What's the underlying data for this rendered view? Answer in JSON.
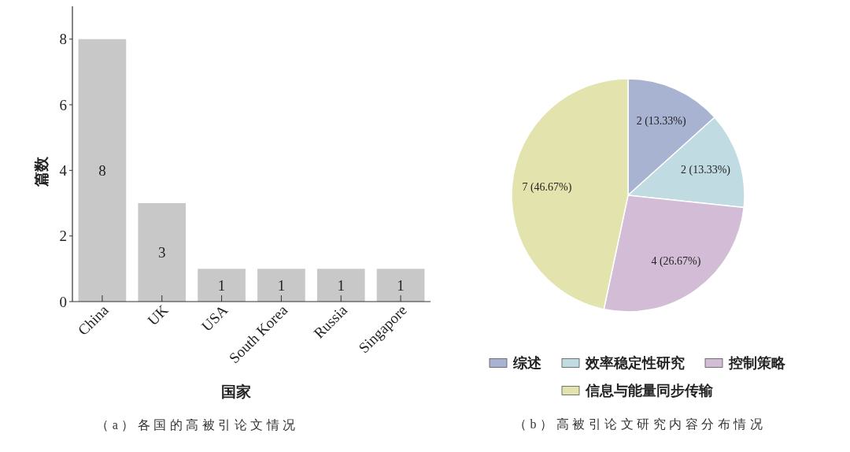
{
  "chart_data": [
    {
      "type": "bar",
      "xlabel": "国家",
      "ylabel": "篇数",
      "categories": [
        "China",
        "UK",
        "USA",
        "South Korea",
        "Russia",
        "Singapore"
      ],
      "values": [
        8,
        3,
        1,
        1,
        1,
        1
      ],
      "color": "#c8c8c8",
      "ylim": [
        0,
        9
      ],
      "yticks": [
        0,
        2,
        4,
        6,
        8
      ],
      "data_labels": true,
      "annotations": [
        "（a）各国的高被引论文情况"
      ]
    },
    {
      "type": "pie",
      "categories": [
        "综述",
        "效率稳定性研究",
        "控制策略",
        "信息与能量同步传输"
      ],
      "values": [
        2,
        2,
        4,
        7
      ],
      "colors": [
        "#a8b3d2",
        "#c0dbe2",
        "#d3bdd6",
        "#e3e3ad"
      ],
      "value_labels": [
        "2 (13.33%)",
        "2 (13.33%)",
        "4 (26.67%)",
        "7 (46.67%)"
      ],
      "legend": "bottom",
      "annotations": [
        "（b）高被引论文研究内容分布情况"
      ]
    }
  ]
}
